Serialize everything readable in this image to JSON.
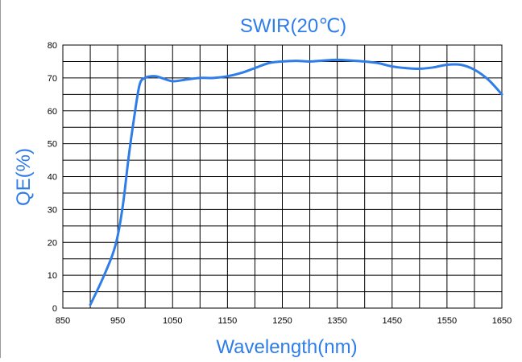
{
  "chart_data": {
    "type": "line",
    "title": "SWIR(20℃)",
    "xlabel": "Wavelength(nm)",
    "ylabel": "QE(%)",
    "xlim": [
      850,
      1650
    ],
    "ylim": [
      0,
      80
    ],
    "x_ticks": [
      850,
      950,
      1050,
      1150,
      1250,
      1350,
      1450,
      1550,
      1650
    ],
    "x_tick_labels": [
      "850",
      "950",
      "1050",
      "1150",
      "1250",
      "1350",
      "1450",
      "1550",
      "1650"
    ],
    "y_ticks": [
      0,
      10,
      20,
      30,
      40,
      50,
      60,
      70,
      80
    ],
    "y_tick_labels": [
      "0",
      "10",
      "20",
      "30",
      "40",
      "50",
      "60",
      "70",
      "80"
    ],
    "grid": true,
    "colors": {
      "line": "#2f7de8",
      "title": "#2f7de8",
      "labels": "#2f7de8",
      "grid": "#000000"
    },
    "series": [
      {
        "x": [
          900,
          920,
          940,
          950,
          960,
          970,
          980,
          990,
          1000,
          1010,
          1020,
          1030,
          1050,
          1075,
          1100,
          1125,
          1150,
          1175,
          1200,
          1225,
          1250,
          1275,
          1300,
          1325,
          1350,
          1375,
          1400,
          1425,
          1450,
          1475,
          1500,
          1525,
          1550,
          1575,
          1600,
          1625,
          1650
        ],
        "y": [
          1,
          8,
          16,
          22,
          32,
          46,
          58,
          68,
          70,
          70.5,
          70.5,
          70,
          69,
          69.5,
          70,
          70,
          70.5,
          71.5,
          73,
          74.5,
          75,
          75.2,
          75,
          75.3,
          75.5,
          75.3,
          75,
          74.5,
          73.5,
          73,
          72.8,
          73.2,
          74,
          74,
          72.5,
          69.5,
          65
        ]
      }
    ]
  }
}
